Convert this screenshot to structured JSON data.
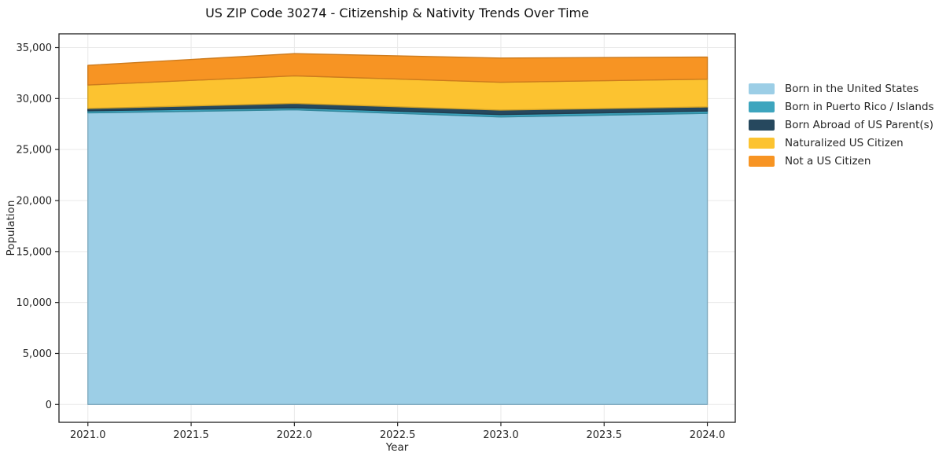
{
  "chart_data": {
    "type": "area",
    "stacked": true,
    "title": "US ZIP Code 30274 - Citizenship & Nativity Trends Over Time",
    "xlabel": "Year",
    "ylabel": "Population",
    "x": [
      2021,
      2022,
      2023,
      2024
    ],
    "series": [
      {
        "name": "Born in the United States",
        "color": "#9ccee6",
        "values": [
          28600,
          28900,
          28200,
          28550
        ]
      },
      {
        "name": "Born in Puerto Rico / Islands",
        "color": "#3da5be",
        "values": [
          200,
          200,
          230,
          230
        ]
      },
      {
        "name": "Born Abroad of US Parent(s)",
        "color": "#26485e",
        "values": [
          230,
          430,
          440,
          400
        ]
      },
      {
        "name": "Naturalized US Citizen",
        "color": "#fcc330",
        "values": [
          2300,
          2700,
          2730,
          2720
        ]
      },
      {
        "name": "Not a US Citizen",
        "color": "#f79423",
        "values": [
          1930,
          2180,
          2370,
          2170
        ]
      }
    ],
    "x_ticks": [
      2021.0,
      2021.5,
      2022.0,
      2022.5,
      2023.0,
      2023.5,
      2024.0
    ],
    "x_tick_labels": [
      "2021.0",
      "2021.5",
      "2022.0",
      "2022.5",
      "2023.0",
      "2023.5",
      "2024.0"
    ],
    "y_ticks": [
      0,
      5000,
      10000,
      15000,
      20000,
      25000,
      30000,
      35000
    ],
    "y_tick_labels": [
      "0",
      "5,000",
      "10,000",
      "15,000",
      "20,000",
      "25,000",
      "30,000",
      "35,000"
    ],
    "xlim": [
      2020.86,
      2024.135
    ],
    "ylim": [
      -1750,
      36350
    ],
    "grid": true,
    "grid_color": "#e9e9e9",
    "spine_color": "#1f1f1f",
    "tick_color": "#262626",
    "legend_position": "right"
  }
}
